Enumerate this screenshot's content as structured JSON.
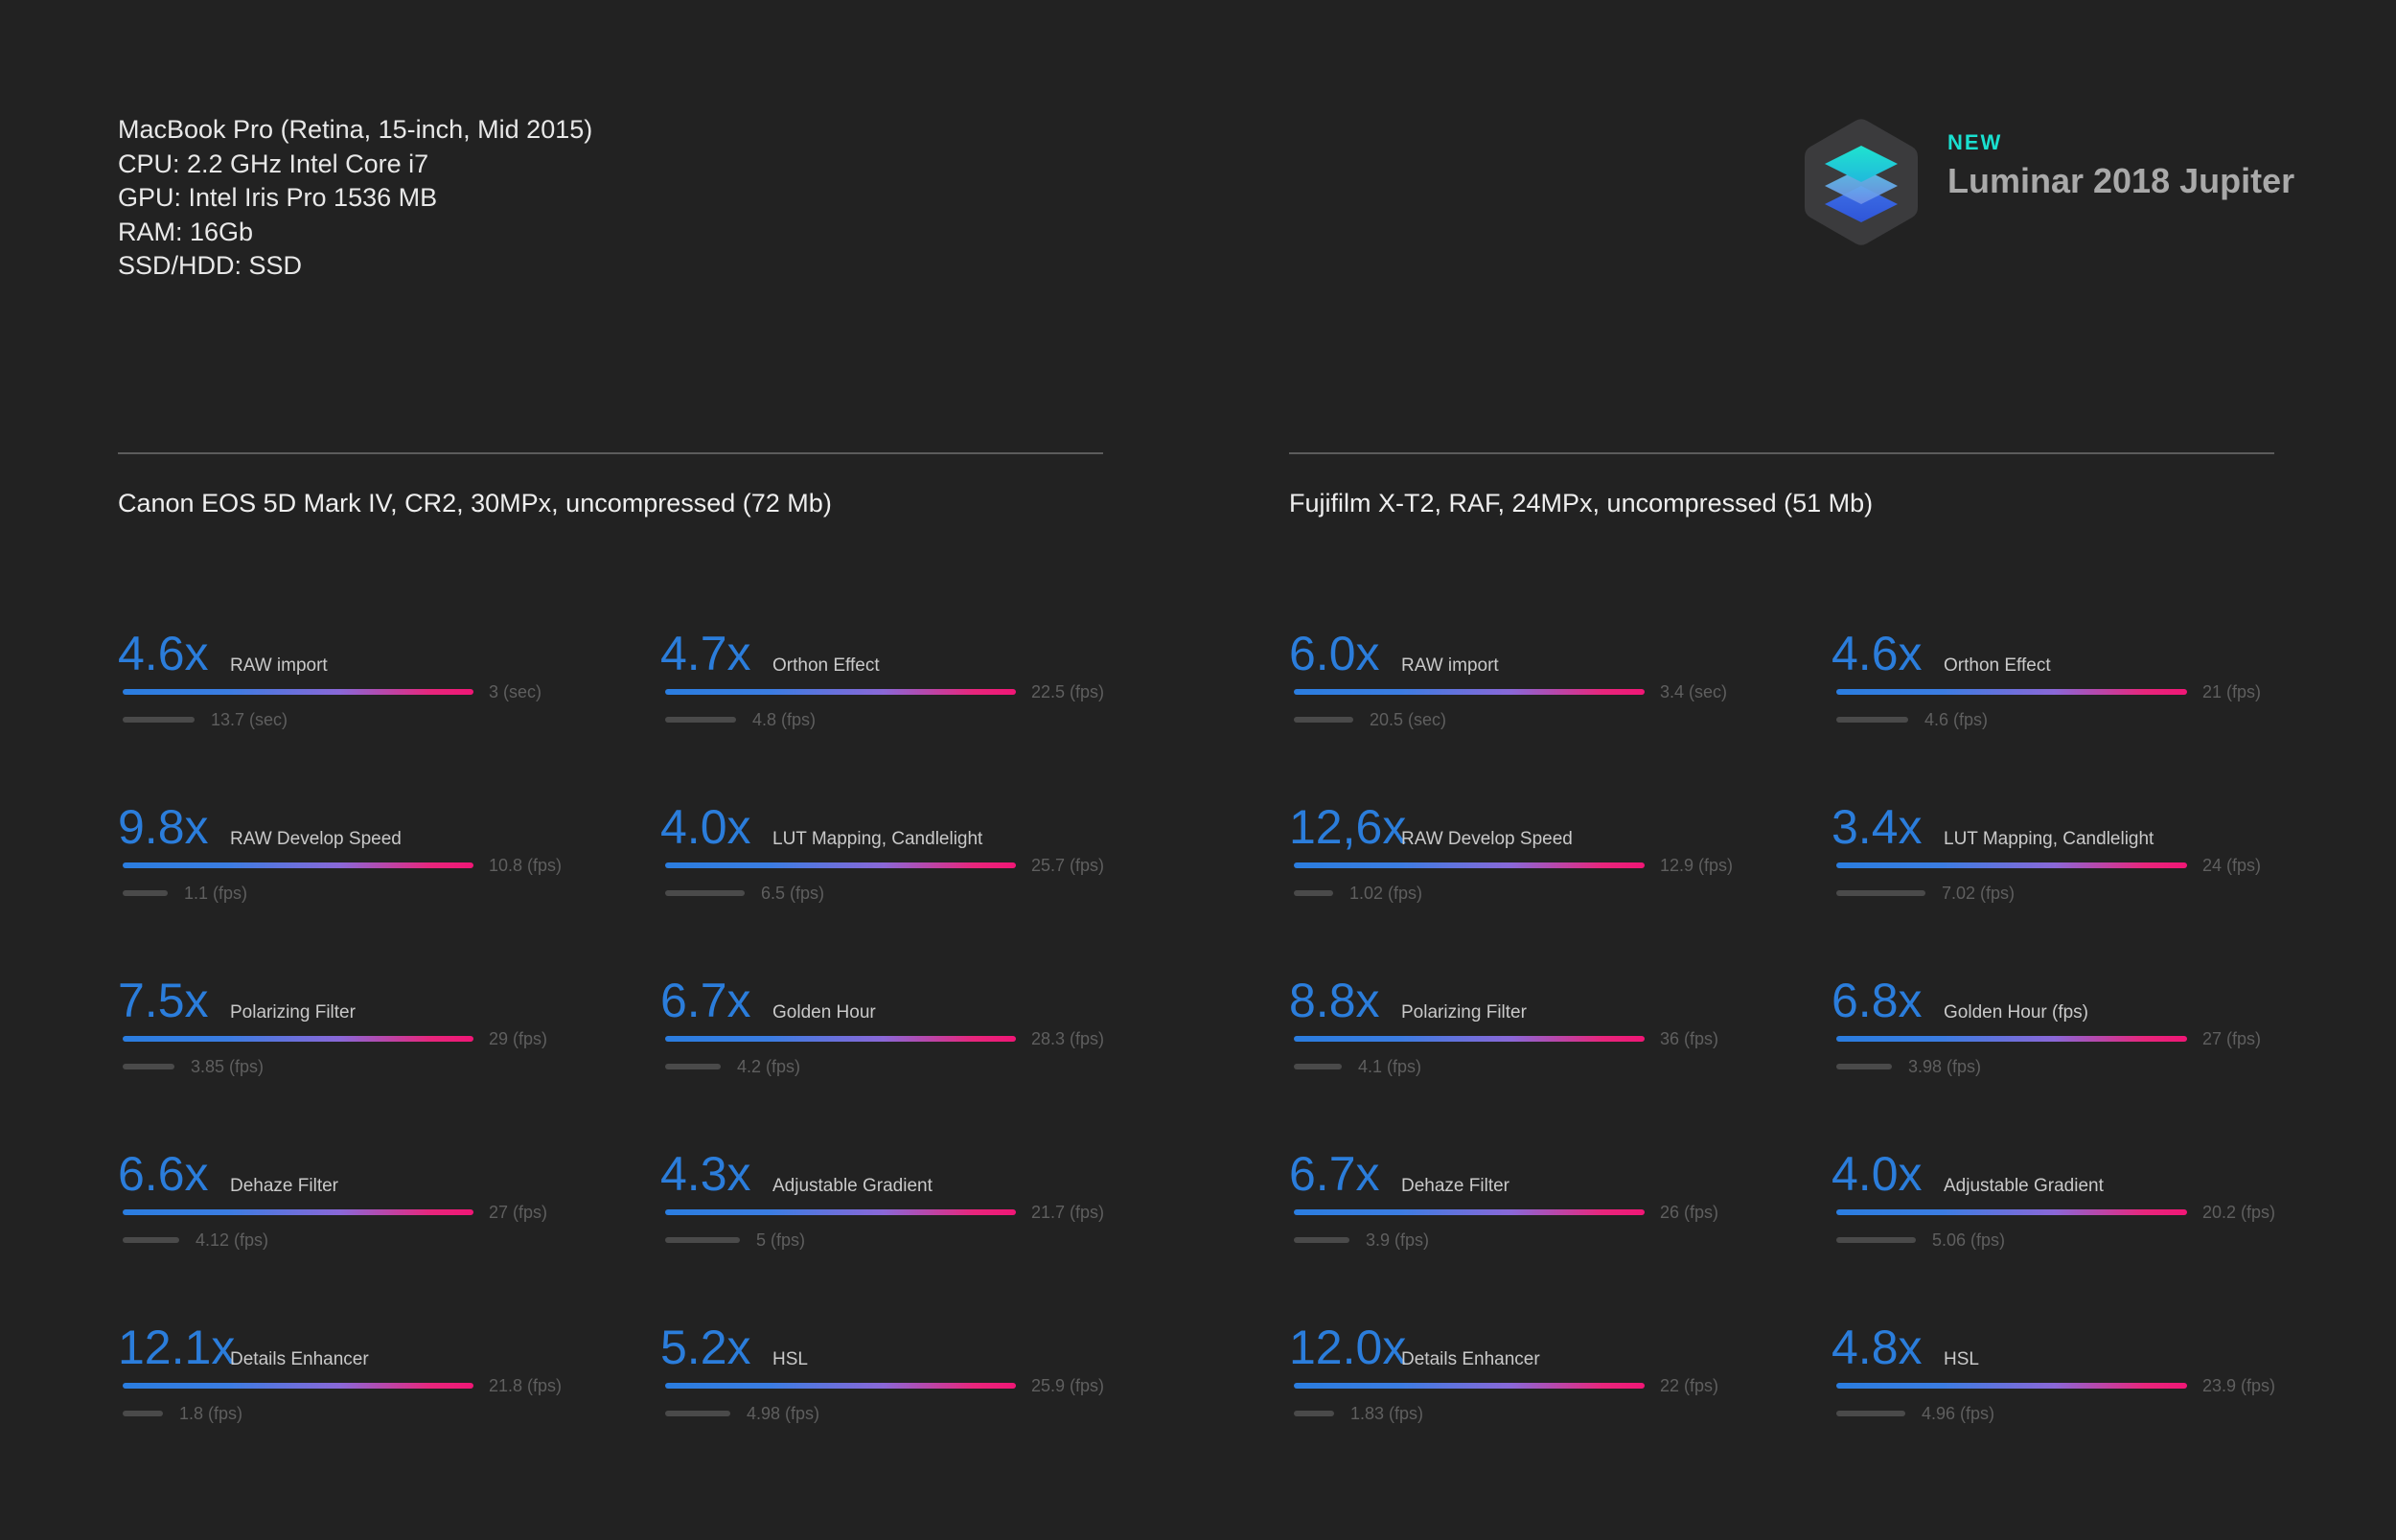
{
  "specs": [
    "MacBook Pro (Retina, 15-inch, Mid 2015)",
    "CPU: 2.2 GHz Intel Core i7",
    "GPU: Intel Iris Pro 1536 MB",
    "RAM: 16Gb",
    "SSD/HDD: SSD"
  ],
  "brand": {
    "tag": "NEW",
    "name": "Luminar 2018 Jupiter",
    "tag_color": "#19e0d0"
  },
  "colors": {
    "factor": "#2b7ddb",
    "bar_start": "#2a7de0",
    "bar_end": "#f01676",
    "bar_old": "#4a4a4a"
  },
  "chart_data": [
    {
      "type": "bar",
      "title": "Canon EOS 5D Mark IV, CR2, 30MPx, uncompressed (72 Mb)",
      "metrics": [
        {
          "factor": "4.6x",
          "label": "RAW import",
          "new_value": 3,
          "old_value": 13.7,
          "unit": "sec",
          "new_text": "3 (sec)",
          "old_text": "13.7 (sec)"
        },
        {
          "factor": "4.7x",
          "label": "Orthon Effect",
          "new_value": 22.5,
          "old_value": 4.8,
          "unit": "fps",
          "new_text": "22.5 (fps)",
          "old_text": "4.8 (fps)"
        },
        {
          "factor": "9.8x",
          "label": "RAW Develop Speed",
          "new_value": 10.8,
          "old_value": 1.1,
          "unit": "fps",
          "new_text": "10.8 (fps)",
          "old_text": "1.1 (fps)"
        },
        {
          "factor": "4.0x",
          "label": "LUT Mapping, Candlelight",
          "new_value": 25.7,
          "old_value": 6.5,
          "unit": "fps",
          "new_text": "25.7 (fps)",
          "old_text": "6.5 (fps)"
        },
        {
          "factor": "7.5x",
          "label": "Polarizing Filter",
          "new_value": 29,
          "old_value": 3.85,
          "unit": "fps",
          "new_text": "29 (fps)",
          "old_text": "3.85 (fps)"
        },
        {
          "factor": "6.7x",
          "label": "Golden Hour",
          "new_value": 28.3,
          "old_value": 4.2,
          "unit": "fps",
          "new_text": "28.3 (fps)",
          "old_text": "4.2 (fps)"
        },
        {
          "factor": "6.6x",
          "label": "Dehaze Filter",
          "new_value": 27,
          "old_value": 4.12,
          "unit": "fps",
          "new_text": "27 (fps)",
          "old_text": "4.12 (fps)"
        },
        {
          "factor": "4.3x",
          "label": "Adjustable Gradient",
          "new_value": 21.7,
          "old_value": 5,
          "unit": "fps",
          "new_text": "21.7 (fps)",
          "old_text": "5 (fps)"
        },
        {
          "factor": "12.1x",
          "label": "Details Enhancer",
          "new_value": 21.8,
          "old_value": 1.8,
          "unit": "fps",
          "new_text": "21.8 (fps)",
          "old_text": "1.8 (fps)"
        },
        {
          "factor": "5.2x",
          "label": "HSL",
          "new_value": 25.9,
          "old_value": 4.98,
          "unit": "fps",
          "new_text": "25.9 (fps)",
          "old_text": "4.98 (fps)"
        }
      ]
    },
    {
      "type": "bar",
      "title": "Fujifilm X-T2, RAF, 24MPx, uncompressed (51 Mb)",
      "metrics": [
        {
          "factor": "6.0x",
          "label": "RAW import",
          "new_value": 3.4,
          "old_value": 20.5,
          "unit": "sec",
          "new_text": "3.4 (sec)",
          "old_text": "20.5 (sec)"
        },
        {
          "factor": "4.6x",
          "label": "Orthon Effect",
          "new_value": 21,
          "old_value": 4.6,
          "unit": "fps",
          "new_text": "21 (fps)",
          "old_text": "4.6 (fps)"
        },
        {
          "factor": "12,6x",
          "label": "RAW Develop Speed",
          "new_value": 12.9,
          "old_value": 1.02,
          "unit": "fps",
          "new_text": "12.9 (fps)",
          "old_text": "1.02 (fps)"
        },
        {
          "factor": "3.4x",
          "label": "LUT Mapping, Candlelight",
          "new_value": 24,
          "old_value": 7.02,
          "unit": "fps",
          "new_text": "24 (fps)",
          "old_text": "7.02 (fps)"
        },
        {
          "factor": "8.8x",
          "label": "Polarizing Filter",
          "new_value": 36,
          "old_value": 4.1,
          "unit": "fps",
          "new_text": "36 (fps)",
          "old_text": "4.1 (fps)"
        },
        {
          "factor": "6.8x",
          "label": "Golden Hour (fps)",
          "new_value": 27,
          "old_value": 3.98,
          "unit": "fps",
          "new_text": "27 (fps)",
          "old_text": "3.98 (fps)"
        },
        {
          "factor": "6.7x",
          "label": "Dehaze Filter",
          "new_value": 26,
          "old_value": 3.9,
          "unit": "fps",
          "new_text": "26 (fps)",
          "old_text": "3.9 (fps)"
        },
        {
          "factor": "4.0x",
          "label": "Adjustable Gradient",
          "new_value": 20.2,
          "old_value": 5.06,
          "unit": "fps",
          "new_text": "20.2 (fps)",
          "old_text": "5.06 (fps)"
        },
        {
          "factor": "12.0x",
          "label": "Details Enhancer",
          "new_value": 22,
          "old_value": 1.83,
          "unit": "fps",
          "new_text": "22 (fps)",
          "old_text": "1.83 (fps)"
        },
        {
          "factor": "4.8x",
          "label": "HSL",
          "new_value": 23.9,
          "old_value": 4.96,
          "unit": "fps",
          "new_text": "23.9 (fps)",
          "old_text": "4.96 (fps)"
        }
      ]
    }
  ]
}
